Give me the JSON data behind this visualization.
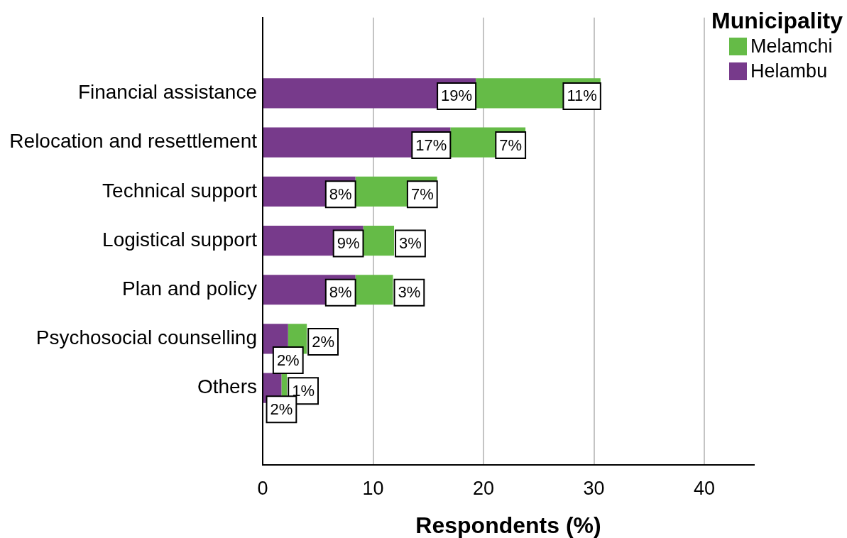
{
  "chart_data": {
    "type": "bar",
    "orientation": "horizontal",
    "stacked": true,
    "categories": [
      "Financial assistance",
      "Relocation and resettlement",
      "Technical support",
      "Logistical support",
      "Plan and policy",
      "Psychosocial counselling",
      "Others"
    ],
    "series": [
      {
        "name": "Helambu",
        "color": "#773a8b",
        "values": [
          19.3,
          17.0,
          8.4,
          9.1,
          8.4,
          2.3,
          1.7
        ],
        "value_labels": [
          "19%",
          "17%",
          "8%",
          "9%",
          "8%",
          "2%",
          "2%"
        ]
      },
      {
        "name": "Melamchi",
        "color": "#65bb47",
        "values": [
          11.3,
          6.8,
          7.4,
          2.8,
          3.4,
          1.7,
          0.5
        ],
        "value_labels": [
          "11%",
          "7%",
          "7%",
          "3%",
          "3%",
          "2%",
          "1%"
        ]
      }
    ],
    "xlim": [
      0,
      44.5
    ],
    "xticks": [
      0,
      10,
      20,
      30,
      40
    ],
    "xlabel": "Respondents (%)",
    "legend_title": "Municipality",
    "legend": "top right",
    "grid": "x"
  }
}
